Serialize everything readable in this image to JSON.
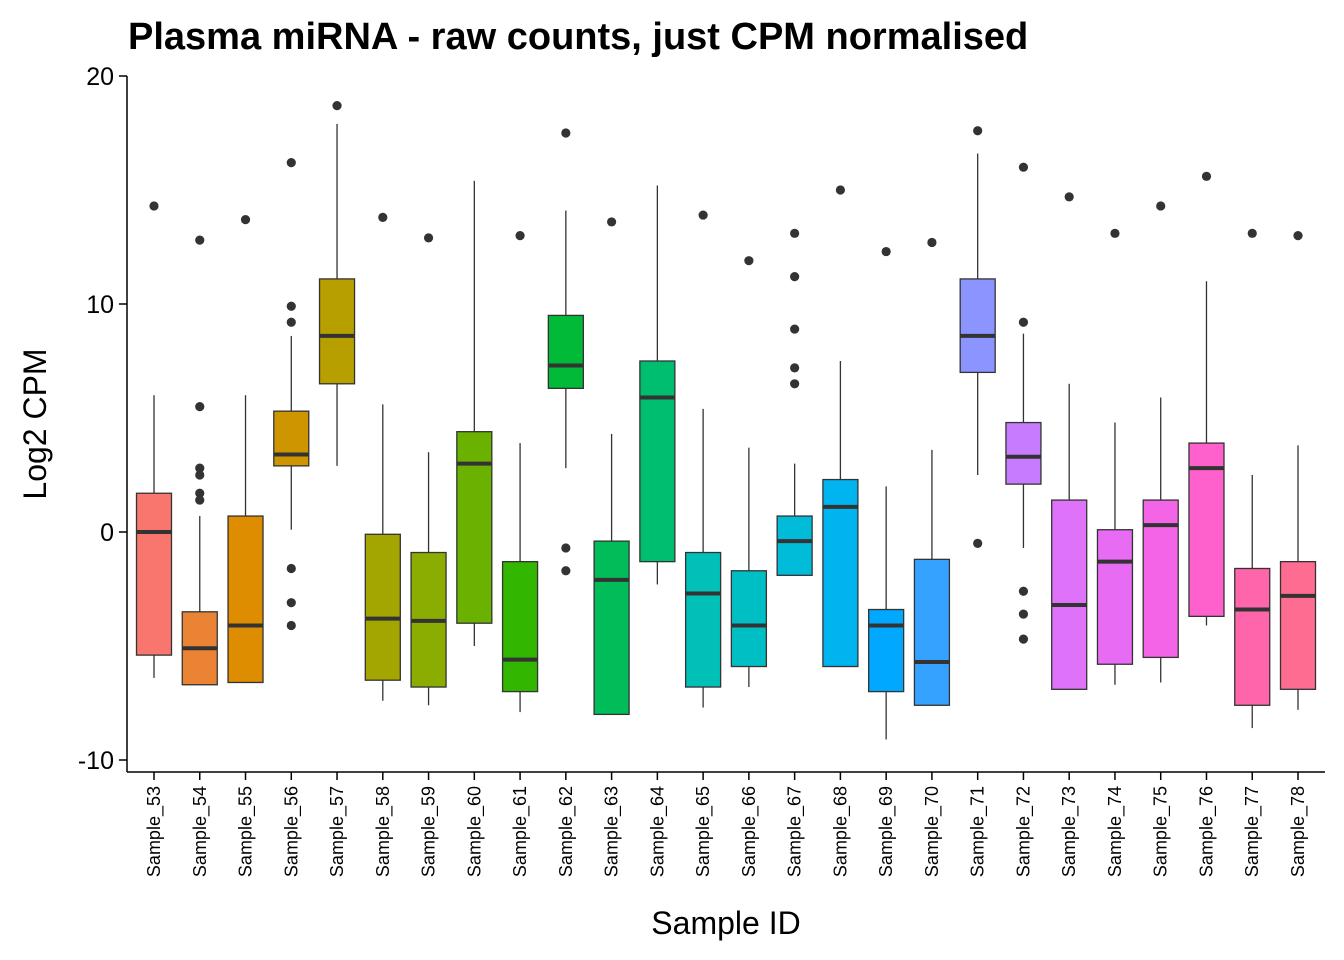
{
  "chart_data": {
    "type": "box",
    "title": "Plasma miRNA - raw counts, just CPM normalised",
    "xlabel": "Sample ID",
    "ylabel": "Log2 CPM",
    "ylim": [
      -10.5,
      20
    ],
    "yticks": [
      -10,
      0,
      10,
      20
    ],
    "grid": false,
    "legend": "none",
    "categories": [
      "Sample_53",
      "Sample_54",
      "Sample_55",
      "Sample_56",
      "Sample_57",
      "Sample_58",
      "Sample_59",
      "Sample_60",
      "Sample_61",
      "Sample_62",
      "Sample_63",
      "Sample_64",
      "Sample_65",
      "Sample_66",
      "Sample_67",
      "Sample_68",
      "Sample_69",
      "Sample_70",
      "Sample_71",
      "Sample_72",
      "Sample_73",
      "Sample_74",
      "Sample_75",
      "Sample_76",
      "Sample_77",
      "Sample_78"
    ],
    "colors": [
      "#F8766D",
      "#EB8335",
      "#DE8C00",
      "#CD9600",
      "#B79F00",
      "#A3A500",
      "#8BAC00",
      "#6BB100",
      "#33B600",
      "#00BA38",
      "#00BC59",
      "#00BE70",
      "#00C0B8",
      "#00BFC4",
      "#00BCD8",
      "#00B4EF",
      "#00A9FF",
      "#35A2FF",
      "#8C95FF",
      "#C77CFF",
      "#DE72F9",
      "#E76BF3",
      "#F365E6",
      "#FF61CC",
      "#FF65AA",
      "#FF6C91"
    ],
    "boxes": [
      {
        "whisker_low": -6.4,
        "q1": -5.4,
        "median": 0.0,
        "q3": 1.7,
        "whisker_high": 6.0,
        "outliers": [
          14.3
        ]
      },
      {
        "whisker_low": -6.7,
        "q1": -6.7,
        "median": -5.1,
        "q3": -3.5,
        "whisker_high": 0.7,
        "outliers": [
          12.8,
          5.5,
          2.8,
          2.5,
          1.7,
          1.4
        ]
      },
      {
        "whisker_low": -6.6,
        "q1": -6.6,
        "median": -4.1,
        "q3": 0.7,
        "whisker_high": 6.0,
        "outliers": [
          13.7
        ]
      },
      {
        "whisker_low": 0.1,
        "q1": 2.9,
        "median": 3.4,
        "q3": 5.3,
        "whisker_high": 8.6,
        "outliers": [
          16.2,
          9.9,
          9.2,
          -1.6,
          -3.1,
          -4.1
        ]
      },
      {
        "whisker_low": 2.9,
        "q1": 6.5,
        "median": 8.6,
        "q3": 11.1,
        "whisker_high": 17.9,
        "outliers": [
          18.7
        ]
      },
      {
        "whisker_low": -7.4,
        "q1": -6.5,
        "median": -3.8,
        "q3": -0.1,
        "whisker_high": 5.6,
        "outliers": [
          13.8
        ]
      },
      {
        "whisker_low": -7.6,
        "q1": -6.8,
        "median": -3.9,
        "q3": -0.9,
        "whisker_high": 3.5,
        "outliers": [
          12.9
        ]
      },
      {
        "whisker_low": -5.0,
        "q1": -4.0,
        "median": 3.0,
        "q3": 4.4,
        "whisker_high": 15.4,
        "outliers": []
      },
      {
        "whisker_low": -7.9,
        "q1": -7.0,
        "median": -5.6,
        "q3": -1.3,
        "whisker_high": 3.9,
        "outliers": [
          13.0
        ]
      },
      {
        "whisker_low": 2.8,
        "q1": 6.3,
        "median": 7.3,
        "q3": 9.5,
        "whisker_high": 14.1,
        "outliers": [
          17.5,
          -0.7,
          -1.7
        ]
      },
      {
        "whisker_low": -8.0,
        "q1": -8.0,
        "median": -2.1,
        "q3": -0.4,
        "whisker_high": 4.3,
        "outliers": [
          13.6
        ]
      },
      {
        "whisker_low": -2.3,
        "q1": -1.3,
        "median": 5.9,
        "q3": 7.5,
        "whisker_high": 15.2,
        "outliers": []
      },
      {
        "whisker_low": -7.7,
        "q1": -6.8,
        "median": -2.7,
        "q3": -0.9,
        "whisker_high": 5.4,
        "outliers": [
          13.9
        ]
      },
      {
        "whisker_low": -6.8,
        "q1": -5.9,
        "median": -4.1,
        "q3": -1.7,
        "whisker_high": 3.7,
        "outliers": [
          11.9
        ]
      },
      {
        "whisker_low": -1.9,
        "q1": -1.9,
        "median": -0.4,
        "q3": 0.7,
        "whisker_high": 3.0,
        "outliers": [
          13.1,
          11.2,
          8.9,
          7.2,
          6.5
        ]
      },
      {
        "whisker_low": -5.9,
        "q1": -5.9,
        "median": 1.1,
        "q3": 2.3,
        "whisker_high": 7.5,
        "outliers": [
          15.0
        ]
      },
      {
        "whisker_low": -9.1,
        "q1": -7.0,
        "median": -4.1,
        "q3": -3.4,
        "whisker_high": 2.0,
        "outliers": [
          12.3
        ]
      },
      {
        "whisker_low": -7.6,
        "q1": -7.6,
        "median": -5.7,
        "q3": -1.2,
        "whisker_high": 3.6,
        "outliers": [
          12.7
        ]
      },
      {
        "whisker_low": 2.5,
        "q1": 7.0,
        "median": 8.6,
        "q3": 11.1,
        "whisker_high": 16.6,
        "outliers": [
          17.6,
          -0.5
        ]
      },
      {
        "whisker_low": -0.7,
        "q1": 2.1,
        "median": 3.3,
        "q3": 4.8,
        "whisker_high": 8.7,
        "outliers": [
          16.0,
          9.2,
          -2.6,
          -3.6,
          -4.7
        ]
      },
      {
        "whisker_low": -6.9,
        "q1": -6.9,
        "median": -3.2,
        "q3": 1.4,
        "whisker_high": 6.5,
        "outliers": [
          14.7
        ]
      },
      {
        "whisker_low": -6.7,
        "q1": -5.8,
        "median": -1.3,
        "q3": 0.1,
        "whisker_high": 4.8,
        "outliers": [
          13.1
        ]
      },
      {
        "whisker_low": -6.6,
        "q1": -5.5,
        "median": 0.3,
        "q3": 1.4,
        "whisker_high": 5.9,
        "outliers": [
          14.3
        ]
      },
      {
        "whisker_low": -4.1,
        "q1": -3.7,
        "median": 2.8,
        "q3": 3.9,
        "whisker_high": 11.0,
        "outliers": [
          15.6
        ]
      },
      {
        "whisker_low": -8.6,
        "q1": -7.6,
        "median": -3.4,
        "q3": -1.6,
        "whisker_high": 2.5,
        "outliers": [
          13.1
        ]
      },
      {
        "whisker_low": -7.8,
        "q1": -6.9,
        "median": -2.8,
        "q3": -1.3,
        "whisker_high": 3.8,
        "outliers": [
          13.0
        ]
      }
    ]
  }
}
